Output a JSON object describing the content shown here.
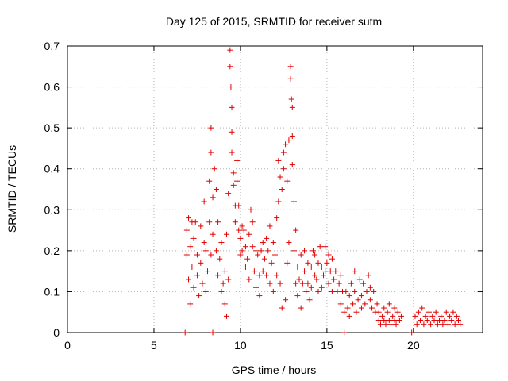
{
  "chart_data": {
    "type": "scatter",
    "title": "Day 125 of 2015, SRMTID for receiver sutm",
    "xlabel": "GPS time / hours",
    "ylabel": "SRMTID / TECUs",
    "xlim": [
      0,
      24
    ],
    "ylim": [
      0,
      0.7
    ],
    "xticks": [
      0,
      5,
      10,
      15,
      20
    ],
    "xtick_labels": [
      "0",
      "5",
      "10",
      "15",
      "20"
    ],
    "yticks": [
      0,
      0.1,
      0.2,
      0.3,
      0.4,
      0.5,
      0.6,
      0.7
    ],
    "ytick_labels": [
      "0",
      "0.1",
      "0.2",
      "0.3",
      "0.4",
      "0.5",
      "0.6",
      "0.7"
    ],
    "grid": true,
    "marker": "+",
    "series": [
      {
        "name": "SRMTID",
        "color": "#e00000",
        "points": [
          [
            6.8,
            0.0
          ],
          [
            8.4,
            0.0
          ],
          [
            16.0,
            0.0
          ],
          [
            19.9,
            0.0
          ],
          [
            6.9,
            0.25
          ],
          [
            6.9,
            0.19
          ],
          [
            7.0,
            0.28
          ],
          [
            7.0,
            0.13
          ],
          [
            7.1,
            0.07
          ],
          [
            7.1,
            0.21
          ],
          [
            7.2,
            0.27
          ],
          [
            7.2,
            0.16
          ],
          [
            7.3,
            0.11
          ],
          [
            7.3,
            0.23
          ],
          [
            7.4,
            0.27
          ],
          [
            7.5,
            0.14
          ],
          [
            7.5,
            0.19
          ],
          [
            7.6,
            0.09
          ],
          [
            7.7,
            0.26
          ],
          [
            7.7,
            0.17
          ],
          [
            7.8,
            0.12
          ],
          [
            7.9,
            0.22
          ],
          [
            7.9,
            0.32
          ],
          [
            8.0,
            0.1
          ],
          [
            8.0,
            0.2
          ],
          [
            8.1,
            0.15
          ],
          [
            8.2,
            0.27
          ],
          [
            8.2,
            0.37
          ],
          [
            8.3,
            0.19
          ],
          [
            8.3,
            0.44
          ],
          [
            8.3,
            0.5
          ],
          [
            8.4,
            0.33
          ],
          [
            8.4,
            0.24
          ],
          [
            8.5,
            0.4
          ],
          [
            8.6,
            0.35
          ],
          [
            8.6,
            0.2
          ],
          [
            8.7,
            0.27
          ],
          [
            8.7,
            0.14
          ],
          [
            8.8,
            0.18
          ],
          [
            8.9,
            0.1
          ],
          [
            8.9,
            0.22
          ],
          [
            9.0,
            0.12
          ],
          [
            9.1,
            0.07
          ],
          [
            9.1,
            0.15
          ],
          [
            9.2,
            0.04
          ],
          [
            9.2,
            0.24
          ],
          [
            9.3,
            0.13
          ],
          [
            9.3,
            0.34
          ],
          [
            9.4,
            0.69
          ],
          [
            9.4,
            0.65
          ],
          [
            9.45,
            0.6
          ],
          [
            9.5,
            0.55
          ],
          [
            9.5,
            0.49
          ],
          [
            9.5,
            0.44
          ],
          [
            9.6,
            0.39
          ],
          [
            9.6,
            0.36
          ],
          [
            9.7,
            0.31
          ],
          [
            9.7,
            0.27
          ],
          [
            9.8,
            0.42
          ],
          [
            9.8,
            0.37
          ],
          [
            9.9,
            0.25
          ],
          [
            9.9,
            0.31
          ],
          [
            10.0,
            0.23
          ],
          [
            10.0,
            0.19
          ],
          [
            10.1,
            0.26
          ],
          [
            10.1,
            0.2
          ],
          [
            10.2,
            0.25
          ],
          [
            10.3,
            0.21
          ],
          [
            10.3,
            0.16
          ],
          [
            10.4,
            0.18
          ],
          [
            10.5,
            0.24
          ],
          [
            10.5,
            0.13
          ],
          [
            10.6,
            0.3
          ],
          [
            10.7,
            0.21
          ],
          [
            10.7,
            0.27
          ],
          [
            10.8,
            0.15
          ],
          [
            10.9,
            0.2
          ],
          [
            10.9,
            0.11
          ],
          [
            11.0,
            0.19
          ],
          [
            11.1,
            0.14
          ],
          [
            11.1,
            0.09
          ],
          [
            11.2,
            0.2
          ],
          [
            11.3,
            0.15
          ],
          [
            11.3,
            0.22
          ],
          [
            11.4,
            0.18
          ],
          [
            11.5,
            0.23
          ],
          [
            11.5,
            0.14
          ],
          [
            11.6,
            0.2
          ],
          [
            11.7,
            0.26
          ],
          [
            11.7,
            0.12
          ],
          [
            11.8,
            0.17
          ],
          [
            11.9,
            0.22
          ],
          [
            11.9,
            0.1
          ],
          [
            12.0,
            0.19
          ],
          [
            12.1,
            0.14
          ],
          [
            12.1,
            0.28
          ],
          [
            12.2,
            0.42
          ],
          [
            12.2,
            0.32
          ],
          [
            12.3,
            0.38
          ],
          [
            12.3,
            0.12
          ],
          [
            12.4,
            0.35
          ],
          [
            12.4,
            0.06
          ],
          [
            12.5,
            0.44
          ],
          [
            12.5,
            0.4
          ],
          [
            12.6,
            0.46
          ],
          [
            12.6,
            0.08
          ],
          [
            12.7,
            0.37
          ],
          [
            12.7,
            0.17
          ],
          [
            12.8,
            0.22
          ],
          [
            12.8,
            0.47
          ],
          [
            12.9,
            0.65
          ],
          [
            12.9,
            0.62
          ],
          [
            12.95,
            0.57
          ],
          [
            13.0,
            0.55
          ],
          [
            13.0,
            0.48
          ],
          [
            13.0,
            0.41
          ],
          [
            13.1,
            0.32
          ],
          [
            13.1,
            0.2
          ],
          [
            13.2,
            0.12
          ],
          [
            13.2,
            0.25
          ],
          [
            13.3,
            0.16
          ],
          [
            13.3,
            0.09
          ],
          [
            13.4,
            0.13
          ],
          [
            13.5,
            0.19
          ],
          [
            13.5,
            0.06
          ],
          [
            13.6,
            0.12
          ],
          [
            13.7,
            0.2
          ],
          [
            13.7,
            0.15
          ],
          [
            13.8,
            0.1
          ],
          [
            13.9,
            0.17
          ],
          [
            13.9,
            0.12
          ],
          [
            14.0,
            0.08
          ],
          [
            14.1,
            0.16
          ],
          [
            14.1,
            0.11
          ],
          [
            14.2,
            0.2
          ],
          [
            14.3,
            0.14
          ],
          [
            14.3,
            0.19
          ],
          [
            14.4,
            0.13
          ],
          [
            14.5,
            0.17
          ],
          [
            14.5,
            0.1
          ],
          [
            14.6,
            0.21
          ],
          [
            14.7,
            0.16
          ],
          [
            14.7,
            0.11
          ],
          [
            14.8,
            0.14
          ],
          [
            14.9,
            0.21
          ],
          [
            14.9,
            0.15
          ],
          [
            15.0,
            0.17
          ],
          [
            15.1,
            0.12
          ],
          [
            15.1,
            0.19
          ],
          [
            15.2,
            0.15
          ],
          [
            15.3,
            0.1
          ],
          [
            15.3,
            0.18
          ],
          [
            15.4,
            0.13
          ],
          [
            15.5,
            0.15
          ],
          [
            15.6,
            0.1
          ],
          [
            15.7,
            0.12
          ],
          [
            15.8,
            0.07
          ],
          [
            15.8,
            0.14
          ],
          [
            15.9,
            0.1
          ],
          [
            16.0,
            0.05
          ],
          [
            16.1,
            0.1
          ],
          [
            16.2,
            0.06
          ],
          [
            16.3,
            0.09
          ],
          [
            16.3,
            0.04
          ],
          [
            16.4,
            0.12
          ],
          [
            16.5,
            0.07
          ],
          [
            16.6,
            0.1
          ],
          [
            16.6,
            0.15
          ],
          [
            16.7,
            0.05
          ],
          [
            16.8,
            0.08
          ],
          [
            16.9,
            0.13
          ],
          [
            17.0,
            0.06
          ],
          [
            17.0,
            0.09
          ],
          [
            17.1,
            0.12
          ],
          [
            17.2,
            0.07
          ],
          [
            17.3,
            0.1
          ],
          [
            17.4,
            0.14
          ],
          [
            17.5,
            0.08
          ],
          [
            17.5,
            0.11
          ],
          [
            17.6,
            0.06
          ],
          [
            17.7,
            0.1
          ],
          [
            17.8,
            0.05
          ],
          [
            17.9,
            0.07
          ],
          [
            18.0,
            0.03
          ],
          [
            18.0,
            0.05
          ],
          [
            18.1,
            0.02
          ],
          [
            18.2,
            0.04
          ],
          [
            18.3,
            0.06
          ],
          [
            18.3,
            0.03
          ],
          [
            18.4,
            0.02
          ],
          [
            18.5,
            0.05
          ],
          [
            18.6,
            0.03
          ],
          [
            18.6,
            0.07
          ],
          [
            18.7,
            0.02
          ],
          [
            18.8,
            0.04
          ],
          [
            18.9,
            0.06
          ],
          [
            18.9,
            0.03
          ],
          [
            19.0,
            0.02
          ],
          [
            19.1,
            0.05
          ],
          [
            19.2,
            0.03
          ],
          [
            19.3,
            0.04
          ],
          [
            20.1,
            0.04
          ],
          [
            20.2,
            0.02
          ],
          [
            20.3,
            0.05
          ],
          [
            20.4,
            0.03
          ],
          [
            20.5,
            0.06
          ],
          [
            20.6,
            0.02
          ],
          [
            20.7,
            0.04
          ],
          [
            20.8,
            0.03
          ],
          [
            20.9,
            0.05
          ],
          [
            21.0,
            0.02
          ],
          [
            21.1,
            0.04
          ],
          [
            21.2,
            0.03
          ],
          [
            21.3,
            0.05
          ],
          [
            21.4,
            0.02
          ],
          [
            21.5,
            0.03
          ],
          [
            21.6,
            0.04
          ],
          [
            21.7,
            0.02
          ],
          [
            21.8,
            0.03
          ],
          [
            21.9,
            0.05
          ],
          [
            22.0,
            0.02
          ],
          [
            22.1,
            0.04
          ],
          [
            22.2,
            0.03
          ],
          [
            22.3,
            0.05
          ],
          [
            22.4,
            0.02
          ],
          [
            22.5,
            0.04
          ],
          [
            22.6,
            0.03
          ],
          [
            22.7,
            0.02
          ]
        ]
      }
    ]
  }
}
